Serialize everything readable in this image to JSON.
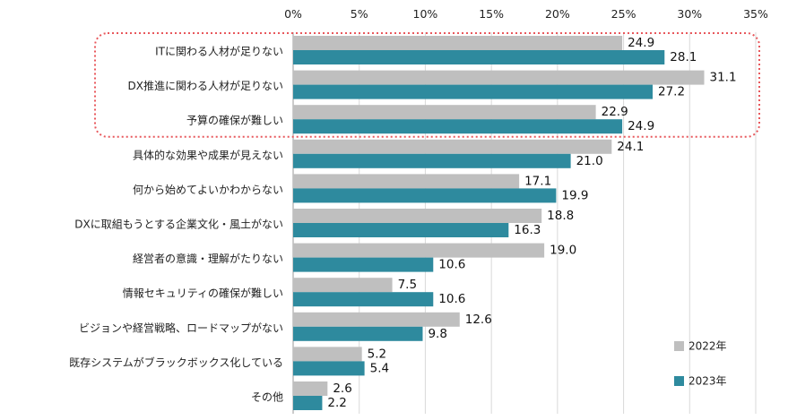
{
  "chart_data": {
    "type": "bar",
    "orientation": "horizontal",
    "categories": [
      "ITに関わる人材が足りない",
      "DX推進に関わる人材が足りない",
      "予算の確保が難しい",
      "具体的な効果や成果が見えない",
      "何から始めてよいかわからない",
      "DXに取組もうとする企業文化・風土がない",
      "経営者の意識・理解がたりない",
      "情報セキュリティの確保が難しい",
      "ビジョンや経営戦略、ロードマップがない",
      "既存システムがブラックボックス化している",
      "その他"
    ],
    "series": [
      {
        "name": "2022年",
        "color": "#BFBFBF",
        "values": [
          24.9,
          31.1,
          22.9,
          24.1,
          17.1,
          18.8,
          19.0,
          7.5,
          12.6,
          5.2,
          2.6
        ]
      },
      {
        "name": "2023年",
        "color": "#2E8A9E",
        "values": [
          28.1,
          27.2,
          24.9,
          21.0,
          19.9,
          16.3,
          10.6,
          10.6,
          9.8,
          5.4,
          2.2
        ]
      }
    ],
    "value_labels": {
      "2022年": [
        "24.9",
        "31.1",
        "22.9",
        "24.1",
        "17.1",
        "18.8",
        "19.0",
        "7.5",
        "12.6",
        "5.2",
        "2.6"
      ],
      "2023年": [
        "28.1",
        "27.2",
        "24.9",
        "21.0",
        "19.9",
        "16.3",
        "10.6",
        "10.6",
        "9.8",
        "5.4",
        "2.2"
      ]
    },
    "xticks": [
      "0%",
      "5%",
      "10%",
      "15%",
      "20%",
      "25%",
      "30%",
      "35%"
    ],
    "xlim": [
      0,
      35
    ],
    "x_axis_position": "top",
    "grid": true,
    "legend": "bottom-right",
    "highlight": {
      "categories": [
        "ITに関わる人材が足りない",
        "DX推進に関わる人材が足りない",
        "予算の確保が難しい"
      ],
      "style": "dotted rounded box",
      "color": "#E8585C"
    }
  }
}
